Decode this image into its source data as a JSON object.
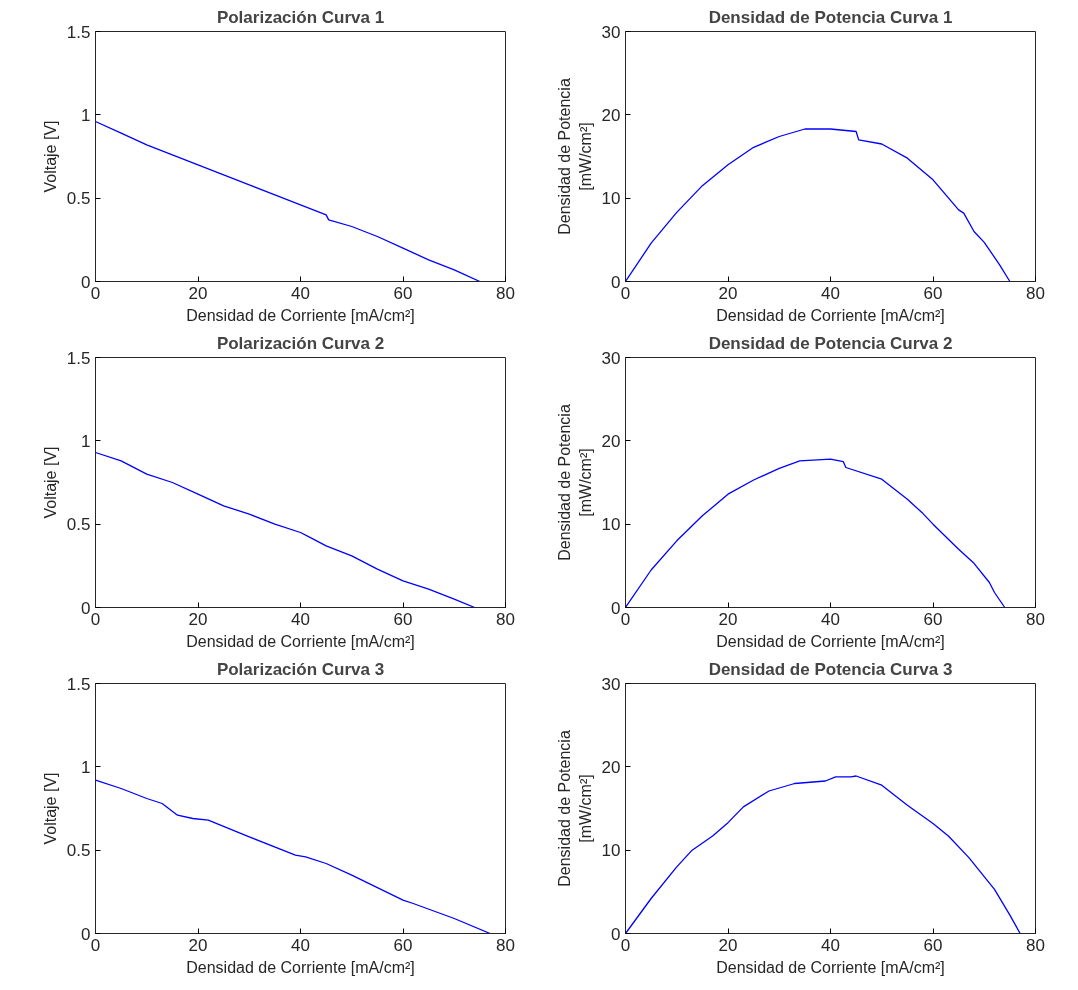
{
  "chart_data": [
    {
      "type": "line",
      "title": "Polarización Curva 1",
      "xlabel": "Densidad de Corriente [mA/cm²]",
      "ylabel": "Voltaje [V]",
      "xlim": [
        0,
        80
      ],
      "xticks": [
        0,
        20,
        40,
        60,
        80
      ],
      "ylim": [
        0,
        1.5
      ],
      "yticks": [
        0,
        0.5,
        1,
        1.5
      ],
      "series": [
        {
          "color": "#0000ff",
          "x": [
            0,
            5,
            10,
            15,
            20,
            25,
            30,
            35,
            40,
            45,
            45.5,
            50,
            55,
            60,
            65,
            70,
            75
          ],
          "values": [
            0.96,
            0.89,
            0.82,
            0.76,
            0.7,
            0.64,
            0.58,
            0.52,
            0.46,
            0.4,
            0.37,
            0.33,
            0.27,
            0.2,
            0.13,
            0.07,
            0.0
          ]
        }
      ]
    },
    {
      "type": "line",
      "title": "Densidad de Potencia Curva 1",
      "xlabel": "Densidad de Corriente [mA/cm²]",
      "ylabel": "Densidad de Potencia [mW/cm²]",
      "xlim": [
        0,
        80
      ],
      "xticks": [
        0,
        20,
        40,
        60,
        80
      ],
      "ylim": [
        0,
        30
      ],
      "yticks": [
        0,
        10,
        20,
        30
      ],
      "series": [
        {
          "color": "#0000ff",
          "x": [
            0,
            5,
            10,
            15,
            20,
            25,
            30,
            35,
            40,
            45,
            45.5,
            50,
            55,
            60,
            65,
            66,
            68,
            70,
            73,
            75
          ],
          "values": [
            0,
            4.6,
            8.3,
            11.5,
            14.0,
            16.1,
            17.4,
            18.3,
            18.3,
            18.0,
            17.0,
            16.5,
            14.8,
            12.2,
            8.6,
            8.2,
            6.0,
            4.7,
            2.0,
            0
          ]
        }
      ]
    },
    {
      "type": "line",
      "title": "Polarización Curva 2",
      "xlabel": "Densidad de Corriente [mA/cm²]",
      "ylabel": "Voltaje [V]",
      "xlim": [
        0,
        80
      ],
      "xticks": [
        0,
        20,
        40,
        60,
        80
      ],
      "ylim": [
        0,
        1.5
      ],
      "yticks": [
        0,
        0.5,
        1,
        1.5
      ],
      "series": [
        {
          "color": "#0000ff",
          "x": [
            0,
            5,
            10,
            15,
            20,
            25,
            30,
            35,
            40,
            42.5,
            45,
            50,
            55,
            60,
            65,
            70,
            74
          ],
          "values": [
            0.93,
            0.88,
            0.8,
            0.75,
            0.68,
            0.61,
            0.56,
            0.5,
            0.45,
            0.41,
            0.37,
            0.31,
            0.23,
            0.16,
            0.11,
            0.05,
            0
          ]
        }
      ]
    },
    {
      "type": "line",
      "title": "Densidad de Potencia Curva 2",
      "xlabel": "Densidad de Corriente [mA/cm²]",
      "ylabel": "Densidad de Potencia [mW/cm²]",
      "xlim": [
        0,
        80
      ],
      "xticks": [
        0,
        20,
        40,
        60,
        80
      ],
      "ylim": [
        0,
        30
      ],
      "yticks": [
        0,
        10,
        20,
        30
      ],
      "series": [
        {
          "color": "#0000ff",
          "x": [
            0,
            5,
            10,
            15,
            20,
            25,
            30,
            34,
            40,
            42.5,
            43,
            50,
            55,
            58,
            60,
            65,
            68,
            71,
            72,
            74
          ],
          "values": [
            0,
            4.5,
            8.0,
            11.0,
            13.6,
            15.3,
            16.7,
            17.6,
            17.8,
            17.5,
            16.8,
            15.4,
            13.0,
            11.3,
            10.0,
            7.0,
            5.3,
            3.0,
            1.8,
            0
          ]
        }
      ]
    },
    {
      "type": "line",
      "title": "Polarización Curva 3",
      "xlabel": "Densidad de Corriente [mA/cm²]",
      "ylabel": "Voltaje [V]",
      "xlim": [
        0,
        80
      ],
      "xticks": [
        0,
        20,
        40,
        60,
        80
      ],
      "ylim": [
        0,
        1.5
      ],
      "yticks": [
        0,
        0.5,
        1,
        1.5
      ],
      "series": [
        {
          "color": "#0000ff",
          "x": [
            0,
            5,
            10,
            13,
            16,
            19,
            22,
            30,
            39,
            41,
            45,
            50,
            52,
            60,
            62,
            70,
            77
          ],
          "values": [
            0.92,
            0.87,
            0.81,
            0.78,
            0.71,
            0.69,
            0.68,
            0.58,
            0.47,
            0.46,
            0.42,
            0.35,
            0.32,
            0.2,
            0.18,
            0.09,
            0
          ]
        }
      ]
    },
    {
      "type": "line",
      "title": "Densidad de Potencia Curva 3",
      "xlabel": "Densidad de Corriente [mA/cm²]",
      "ylabel": "Densidad de Potencia [mW/cm²]",
      "xlim": [
        0,
        80
      ],
      "xticks": [
        0,
        20,
        40,
        60,
        80
      ],
      "ylim": [
        0,
        30
      ],
      "yticks": [
        0,
        10,
        20,
        30
      ],
      "series": [
        {
          "color": "#0000ff",
          "x": [
            0,
            5,
            10,
            13,
            17,
            20,
            23,
            28,
            33,
            39,
            41,
            44,
            45,
            50,
            55,
            60,
            63,
            67,
            72,
            75,
            77
          ],
          "values": [
            0,
            4.2,
            8.0,
            10.0,
            11.7,
            13.3,
            15.2,
            17.1,
            18.0,
            18.3,
            18.8,
            18.8,
            18.9,
            17.8,
            15.4,
            13.2,
            11.7,
            9.1,
            5.3,
            2.2,
            0
          ]
        }
      ]
    }
  ]
}
